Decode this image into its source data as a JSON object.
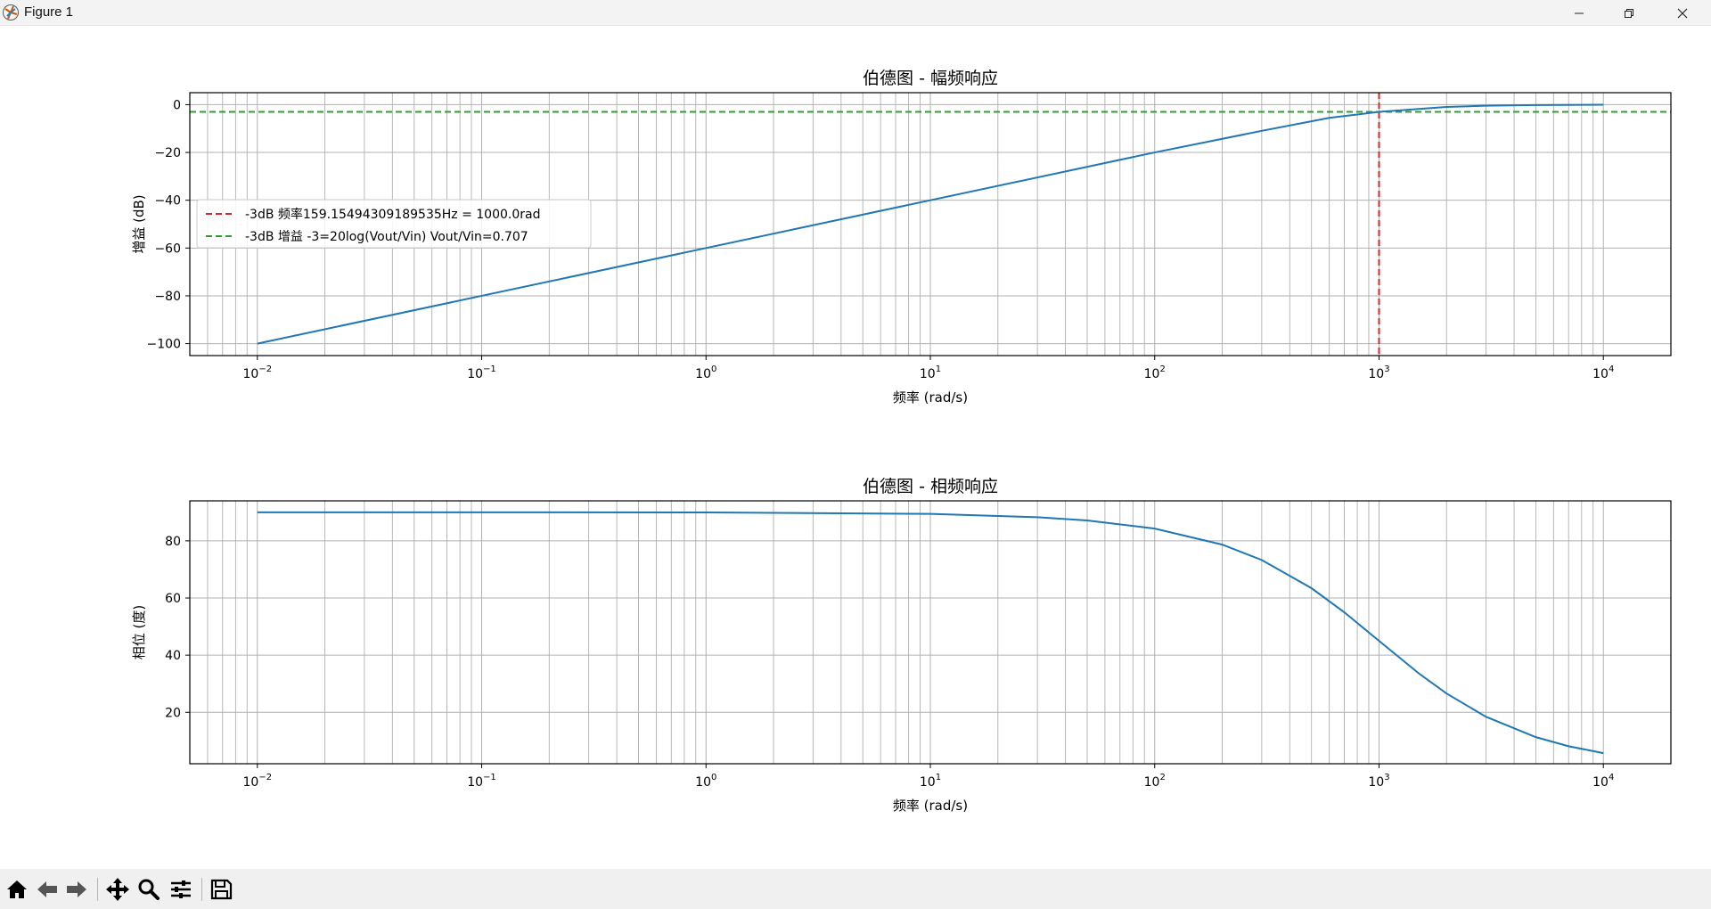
{
  "window": {
    "title": "Figure 1",
    "app_icon": "matplotlib-icon"
  },
  "toolbar": {
    "buttons": [
      {
        "name": "home-icon"
      },
      {
        "name": "back-icon"
      },
      {
        "name": "forward-icon"
      },
      {
        "name": "pan-icon"
      },
      {
        "name": "zoom-icon"
      },
      {
        "name": "configure-subplots-icon"
      },
      {
        "name": "save-icon"
      }
    ],
    "coordinates": ""
  },
  "chart_data": [
    {
      "type": "line",
      "title": "伯德图 - 幅频响应",
      "xlabel": "频率 (rad/s)",
      "ylabel": "增益 (dB)",
      "xscale": "log",
      "xlim": [
        0.005,
        20000
      ],
      "ylim": [
        -105,
        5
      ],
      "xticks": [
        {
          "value": 0.01,
          "base": "10",
          "exp": "−2"
        },
        {
          "value": 0.1,
          "base": "10",
          "exp": "−1"
        },
        {
          "value": 1,
          "base": "10",
          "exp": "0"
        },
        {
          "value": 10,
          "base": "10",
          "exp": "1"
        },
        {
          "value": 100,
          "base": "10",
          "exp": "2"
        },
        {
          "value": 1000,
          "base": "10",
          "exp": "3"
        },
        {
          "value": 10000,
          "base": "10",
          "exp": "4"
        }
      ],
      "yticks": [
        0,
        -20,
        -40,
        -60,
        -80,
        -100
      ],
      "grid": "both",
      "legend_position": "center-left",
      "series": [
        {
          "name": "",
          "color": "#1f77b4",
          "style": "solid",
          "x": [
            0.01,
            0.1,
            1,
            10,
            100,
            300,
            600,
            1000,
            2000,
            3000,
            5000,
            10000
          ],
          "y": [
            -100,
            -80,
            -60,
            -40,
            -20.0,
            -10.97,
            -5.55,
            -3.01,
            -0.97,
            -0.46,
            -0.17,
            -0.04
          ]
        }
      ],
      "reference_lines": [
        {
          "name": "-3dB 频率159.15494309189535Hz = 1000.0rad",
          "orientation": "vertical",
          "value": 1000,
          "color": "#d62728",
          "style": "dashed"
        },
        {
          "name": "-3dB 增益 -3=20log(Vout/Vin) Vout/Vin=0.707",
          "orientation": "horizontal",
          "value": -3,
          "color": "#2ca02c",
          "style": "dashed"
        }
      ]
    },
    {
      "type": "line",
      "title": "伯德图 - 相频响应",
      "xlabel": "频率 (rad/s)",
      "ylabel": "相位 (度)",
      "xscale": "log",
      "xlim": [
        0.005,
        20000
      ],
      "ylim": [
        2,
        94
      ],
      "xticks": [
        {
          "value": 0.01,
          "base": "10",
          "exp": "−2"
        },
        {
          "value": 0.1,
          "base": "10",
          "exp": "−1"
        },
        {
          "value": 1,
          "base": "10",
          "exp": "0"
        },
        {
          "value": 10,
          "base": "10",
          "exp": "1"
        },
        {
          "value": 100,
          "base": "10",
          "exp": "2"
        },
        {
          "value": 1000,
          "base": "10",
          "exp": "3"
        },
        {
          "value": 10000,
          "base": "10",
          "exp": "4"
        }
      ],
      "yticks": [
        80,
        60,
        40,
        20
      ],
      "grid": "both",
      "series": [
        {
          "name": "",
          "color": "#1f77b4",
          "style": "solid",
          "x": [
            0.01,
            0.1,
            1,
            10,
            30,
            50,
            100,
            200,
            300,
            500,
            700,
            1000,
            1500,
            2000,
            3000,
            5000,
            7000,
            10000
          ],
          "y": [
            90,
            90,
            89.94,
            89.43,
            88.28,
            87.14,
            84.29,
            78.69,
            73.3,
            63.43,
            55.01,
            45,
            33.69,
            26.57,
            18.43,
            11.31,
            8.13,
            5.71
          ]
        }
      ]
    }
  ]
}
